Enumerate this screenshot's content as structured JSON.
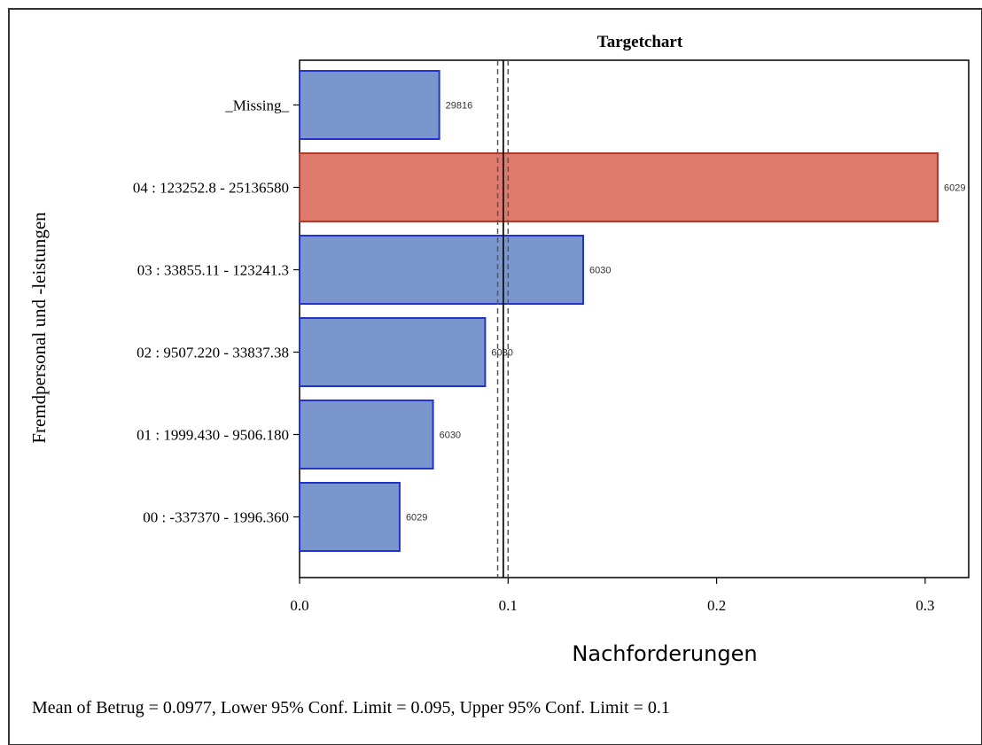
{
  "chart_data": {
    "type": "bar",
    "orientation": "horizontal",
    "title": "Targetchart",
    "xlabel": "Nachforderungen",
    "ylabel": "Fremdpersonal und -leistungen",
    "categories": [
      "_Missing_",
      "04 : 123252.8 - 25136580",
      "03 : 33855.11 - 123241.3",
      "02 : 9507.220 - 33837.38",
      "01 : 1999.430 - 9506.180",
      "00 : -337370 - 1996.360"
    ],
    "values": [
      0.067,
      0.306,
      0.136,
      0.089,
      0.064,
      0.048
    ],
    "data_labels": [
      "29816",
      "6029",
      "6030",
      "6030",
      "6030",
      "6029"
    ],
    "highlighted": [
      false,
      true,
      false,
      false,
      false,
      false
    ],
    "xlim": [
      0.0,
      0.32
    ],
    "xticks": [
      0.0,
      0.1,
      0.2,
      0.3
    ],
    "xtick_labels": [
      "0.0",
      "0.1",
      "0.2",
      "0.3"
    ],
    "reference_lines": {
      "mean": 0.0977,
      "lower_95": 0.095,
      "upper_95": 0.1
    },
    "footnote": "Mean of Betrug = 0.0977, Lower 95% Conf. Limit = 0.095, Upper 95% Conf. Limit = 0.1",
    "grid": false,
    "legend": "none"
  },
  "colors": {
    "bar_fill": "#7b96cc",
    "bar_stroke": "#2233cc",
    "highlight_fill": "#dd7a6c",
    "highlight_stroke": "#b03a2e",
    "axis": "#000000",
    "frame_border": "#333333"
  }
}
